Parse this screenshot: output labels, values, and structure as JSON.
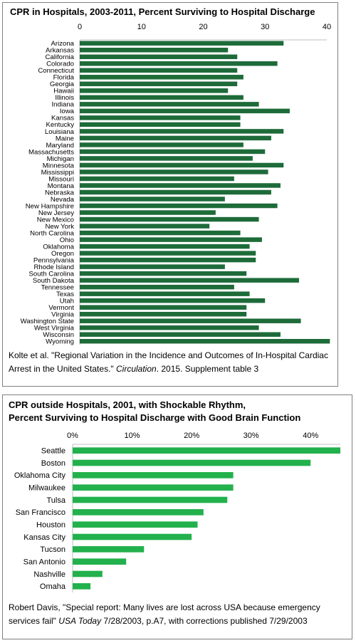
{
  "chart_data": [
    {
      "type": "bar",
      "orientation": "horizontal",
      "title": "CPR in Hospitals, 2003-2011, Percent Surviving to Hospital Discharge",
      "xlim": [
        0,
        40
      ],
      "x_ticks": [
        "0",
        "10",
        "20",
        "30",
        "40"
      ],
      "axis_position": "top",
      "grid": false,
      "color": "#1e6b3a",
      "categories": [
        "Arizona",
        "Arkansas",
        "California",
        "Colorado",
        "Connecticut",
        "Florida",
        "Georgia",
        "Hawaii",
        "Illinois",
        "Indiana",
        "Iowa",
        "Kansas",
        "Kentucky",
        "Louisiana",
        "Maine",
        "Maryland",
        "Massachusetts",
        "Michigan",
        "Minnesota",
        "Mississippi",
        "Missouri",
        "Montana",
        "Nebraska",
        "Nevada",
        "New Hampshire",
        "New Jersey",
        "New Mexico",
        "New York",
        "North Carolina",
        "Ohio",
        "Oklahoma",
        "Oregon",
        "Pennsylvania",
        "Rhode Island",
        "South Carolina",
        "South Dakota",
        "Tennessee",
        "Texas",
        "Utah",
        "Vermont",
        "Virginia",
        "Washington State",
        "West Virginia",
        "Wisconsin",
        "Wyoming"
      ],
      "values": [
        33,
        24,
        25.5,
        32,
        25.5,
        26.5,
        25.5,
        24,
        26.5,
        29,
        34,
        26,
        26,
        33,
        31,
        26.5,
        30,
        28,
        33,
        30.5,
        25,
        32.5,
        31,
        23.5,
        32,
        22,
        29,
        21,
        26,
        29.5,
        27.5,
        28.5,
        28.5,
        23.5,
        27,
        35.5,
        25,
        27.5,
        30,
        27,
        27,
        35.8,
        29,
        32.5,
        40.5
      ],
      "source": {
        "text_before": "Kolte et al. \"Regional Variation in the Incidence and Outcomes of In-Hospital Cardiac Arrest in the United States.\" ",
        "journal": "Circulation",
        "text_after": ". 2015. Supplement table 3"
      }
    },
    {
      "type": "bar",
      "orientation": "horizontal",
      "title_line1": "CPR outside Hospitals, 2001, with Shockable Rhythm,",
      "title_line2": "Percent Surviving to Hospital Discharge with Good Brain Function",
      "xlim": [
        0,
        45
      ],
      "x_ticks": [
        "0%",
        "10%",
        "20%",
        "30%",
        "40%"
      ],
      "axis_position": "top",
      "grid": false,
      "color": "#22b14c",
      "categories": [
        "Seattle",
        "Boston",
        "Oklahoma City",
        "Milwaukee",
        "Tulsa",
        "San Francisco",
        "Houston",
        "Kansas City",
        "Tucson",
        "San Antonio",
        "Nashville",
        "Omaha"
      ],
      "values": [
        45,
        40,
        27,
        27,
        26,
        22,
        21,
        20,
        12,
        9,
        5,
        3
      ],
      "source": {
        "text_before": "Robert Davis, \"Special report: Many lives are lost across USA because emergency services fail\" ",
        "journal": "USA Today",
        "text_after": " 7/28/2003, p.A7, with corrections published 7/29/2003"
      }
    }
  ]
}
